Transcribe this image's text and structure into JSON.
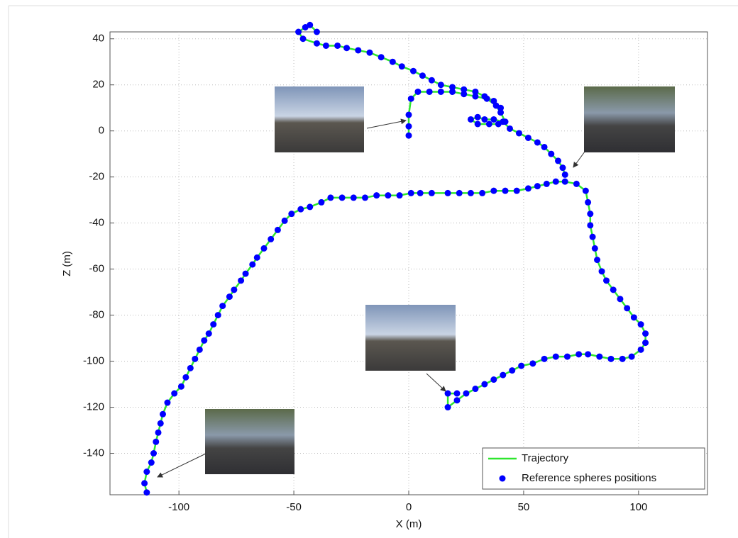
{
  "chart_data": {
    "type": "line",
    "x_label": "X (m)",
    "y_label": "Z (m)",
    "xlim": [
      -130,
      130
    ],
    "xticks": [
      -100,
      -50,
      0,
      50,
      100
    ],
    "ylim": [
      -158,
      43
    ],
    "yticks": [
      40,
      20,
      0,
      -20,
      -40,
      -60,
      -80,
      -100,
      -120,
      -140
    ],
    "grid": true,
    "legend": "lower right",
    "series": [
      {
        "name": "Trajectory",
        "type": "line",
        "color": "#2ee62e",
        "x": [
          -114,
          -115,
          -114,
          -112,
          -111,
          -110,
          -109,
          -108,
          -107,
          -105,
          -102,
          -99,
          -97,
          -95,
          -93,
          -91,
          -89,
          -87,
          -85,
          -83,
          -81,
          -78,
          -76,
          -73,
          -71,
          -68,
          -66,
          -63,
          -60,
          -57,
          -54,
          -51,
          -47,
          -43,
          -38,
          -34,
          -29,
          -24,
          -19,
          -14,
          -9,
          -4,
          1,
          5,
          10,
          17,
          22,
          27,
          32,
          37,
          42,
          47,
          52,
          56,
          60,
          64,
          68,
          73,
          77,
          78,
          79,
          79,
          80,
          81,
          82,
          84,
          86,
          89,
          92,
          95,
          98,
          101,
          103,
          103,
          101,
          97,
          93,
          88,
          83,
          78,
          74,
          69,
          64,
          59,
          54,
          49,
          45,
          41,
          37,
          33,
          29,
          25,
          21,
          17,
          17,
          21,
          null,
          0,
          0,
          0,
          1,
          4,
          9,
          14,
          19,
          24,
          29,
          34,
          38,
          40,
          42,
          39,
          35,
          30,
          27,
          30,
          33,
          37,
          41,
          44,
          48,
          52,
          56,
          59,
          62,
          65,
          67,
          68,
          null,
          -40,
          -43,
          -45,
          -48,
          -46,
          -40,
          -36,
          -31,
          -27,
          -22,
          -17,
          -12,
          -7,
          -3,
          2,
          6,
          10,
          14,
          19,
          24,
          29,
          33,
          37,
          40
        ],
        "values": [
          -157,
          -153,
          -148,
          -144,
          -140,
          -135,
          -131,
          -127,
          -123,
          -118,
          -114,
          -111,
          -107,
          -103,
          -99,
          -95,
          -91,
          -88,
          -84,
          -80,
          -76,
          -72,
          -69,
          -65,
          -62,
          -58,
          -55,
          -51,
          -47,
          -43,
          -39,
          -36,
          -34,
          -33,
          -31,
          -29,
          -29,
          -29,
          -29,
          -28,
          -28,
          -28,
          -27,
          -27,
          -27,
          -27,
          -27,
          -27,
          -27,
          -26,
          -26,
          -26,
          -25,
          -24,
          -23,
          -22,
          -22,
          -23,
          -26,
          -31,
          -36,
          -41,
          -46,
          -51,
          -56,
          -61,
          -65,
          -69,
          -73,
          -77,
          -81,
          -84,
          -88,
          -92,
          -95,
          -98,
          -99,
          -99,
          -98,
          -97,
          -97,
          -98,
          -98,
          -99,
          -101,
          -102,
          -104,
          -106,
          -108,
          -110,
          -112,
          -114,
          -117,
          -120,
          -114,
          -114,
          null,
          -2,
          2,
          7,
          14,
          17,
          17,
          17,
          17,
          16,
          15,
          14,
          11,
          8,
          4,
          3,
          3,
          3,
          5,
          6,
          5,
          5,
          4,
          1,
          -1,
          -3,
          -5,
          -7,
          -10,
          -13,
          -16,
          -19,
          null,
          43,
          46,
          45,
          43,
          40,
          38,
          37,
          37,
          36,
          35,
          34,
          32,
          30,
          28,
          26,
          24,
          22,
          20,
          19,
          18,
          17,
          15,
          13,
          10
        ]
      },
      {
        "name": "Reference spheres positions",
        "type": "scatter",
        "color": "#0000ff",
        "x": [
          -114,
          -115,
          -114,
          -112,
          -111,
          -110,
          -109,
          -108,
          -107,
          -105,
          -102,
          -99,
          -97,
          -95,
          -93,
          -91,
          -89,
          -87,
          -85,
          -83,
          -81,
          -78,
          -76,
          -73,
          -71,
          -68,
          -66,
          -63,
          -60,
          -57,
          -54,
          -51,
          -47,
          -43,
          -38,
          -34,
          -29,
          -24,
          -19,
          -14,
          -9,
          -4,
          1,
          5,
          10,
          17,
          22,
          27,
          32,
          37,
          42,
          47,
          52,
          56,
          60,
          64,
          68,
          73,
          77,
          78,
          79,
          79,
          80,
          81,
          82,
          84,
          86,
          89,
          92,
          95,
          98,
          101,
          103,
          103,
          101,
          97,
          93,
          88,
          83,
          78,
          74,
          69,
          64,
          59,
          54,
          49,
          45,
          41,
          37,
          33,
          29,
          25,
          21,
          17,
          17,
          21,
          0,
          0,
          0,
          1,
          4,
          9,
          14,
          19,
          24,
          29,
          34,
          38,
          40,
          42,
          39,
          35,
          30,
          27,
          30,
          33,
          37,
          41,
          44,
          48,
          52,
          56,
          59,
          62,
          65,
          67,
          68,
          -40,
          -43,
          -45,
          -48,
          -46,
          -40,
          -36,
          -31,
          -27,
          -22,
          -17,
          -12,
          -7,
          -3,
          2,
          6,
          10,
          14,
          19,
          24,
          29,
          33,
          37,
          40
        ],
        "values": [
          -157,
          -153,
          -148,
          -144,
          -140,
          -135,
          -131,
          -127,
          -123,
          -118,
          -114,
          -111,
          -107,
          -103,
          -99,
          -95,
          -91,
          -88,
          -84,
          -80,
          -76,
          -72,
          -69,
          -65,
          -62,
          -58,
          -55,
          -51,
          -47,
          -43,
          -39,
          -36,
          -34,
          -33,
          -31,
          -29,
          -29,
          -29,
          -29,
          -28,
          -28,
          -28,
          -27,
          -27,
          -27,
          -27,
          -27,
          -27,
          -27,
          -26,
          -26,
          -26,
          -25,
          -24,
          -23,
          -22,
          -22,
          -23,
          -26,
          -31,
          -36,
          -41,
          -46,
          -51,
          -56,
          -61,
          -65,
          -69,
          -73,
          -77,
          -81,
          -84,
          -88,
          -92,
          -95,
          -98,
          -99,
          -99,
          -98,
          -97,
          -97,
          -98,
          -98,
          -99,
          -101,
          -102,
          -104,
          -106,
          -108,
          -110,
          -112,
          -114,
          -117,
          -120,
          -114,
          -114,
          -2,
          2,
          7,
          14,
          17,
          17,
          17,
          17,
          16,
          15,
          14,
          11,
          8,
          4,
          3,
          3,
          3,
          5,
          6,
          5,
          5,
          4,
          1,
          -1,
          -3,
          -5,
          -7,
          -10,
          -13,
          -16,
          -19,
          43,
          46,
          45,
          43,
          40,
          38,
          37,
          37,
          36,
          35,
          34,
          32,
          30,
          28,
          26,
          24,
          22,
          20,
          19,
          18,
          17,
          15,
          13,
          10
        ]
      }
    ]
  }
}
